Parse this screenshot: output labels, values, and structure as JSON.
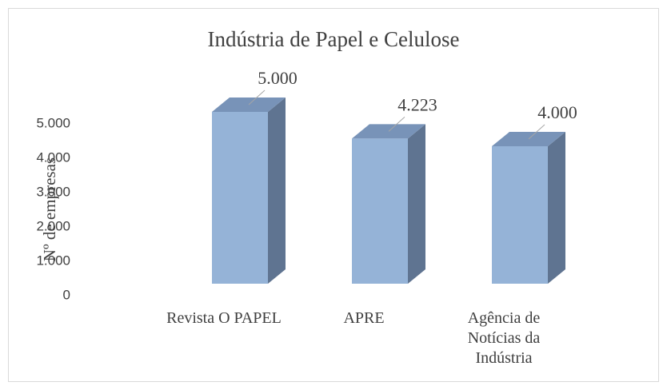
{
  "chart_data": {
    "type": "bar3d",
    "title": "Indústria de Papel e Celulose",
    "y_label": "Nº de empresas",
    "categories": [
      "Revista O PAPEL",
      "APRE",
      "Agência de Notícias da Indústria"
    ],
    "values": [
      5000,
      4223,
      4000
    ],
    "value_labels": [
      "5.000",
      "4.223",
      "4.000"
    ],
    "color": "#95b3d7",
    "ylim": [
      0,
      5000
    ],
    "yticks": [
      0,
      {
        "value": 1000,
        "label": "1.000"
      },
      {
        "value": 2000,
        "label": "2.000"
      },
      {
        "value": 3000,
        "label": "3.000"
      },
      {
        "value": 4000,
        "label": "4.000"
      },
      {
        "value": 5000,
        "label": "5.000"
      }
    ]
  }
}
